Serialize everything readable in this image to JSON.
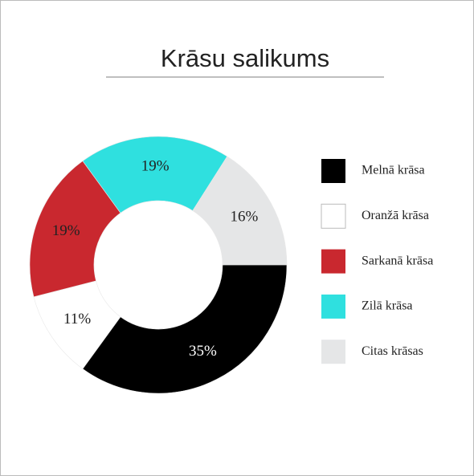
{
  "chart_data": {
    "type": "donut",
    "title": "Krāsu salikums",
    "categories": [
      "Melnā krāsa",
      "Oranžā krāsa",
      "Sarkanā krāsa",
      "Zilā krāsa",
      "Citas krāsas"
    ],
    "values": [
      35,
      11,
      19,
      19,
      16
    ],
    "value_labels": [
      "35%",
      "11%",
      "19%",
      "19%",
      "16%"
    ],
    "colors": [
      "#000000",
      "#ffffff",
      "#c9282f",
      "#2fe0df",
      "#e5e6e7"
    ],
    "legend": "right"
  }
}
